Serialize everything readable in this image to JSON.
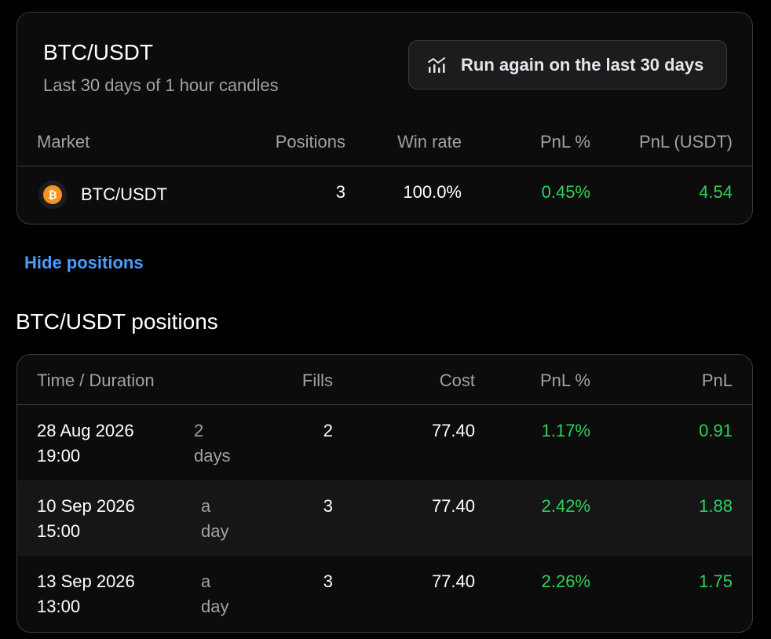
{
  "summary": {
    "title": "BTC/USDT",
    "subtitle": "Last 30 days of 1 hour candles",
    "run_button_label": "Run again on the last 30 days",
    "run_button_icon": "chart-icon",
    "columns": {
      "market": "Market",
      "positions": "Positions",
      "win_rate": "Win rate",
      "pnl_pct": "PnL %",
      "pnl_usdt": "PnL (USDT)"
    },
    "row": {
      "coin_icon": "bitcoin-icon",
      "market": "BTC/USDT",
      "positions": "3",
      "win_rate": "100.0%",
      "pnl_pct": "0.45%",
      "pnl_usdt": "4.54"
    }
  },
  "hide_positions_label": "Hide positions",
  "positions_section": {
    "title": "BTC/USDT positions",
    "columns": {
      "time": "Time / Duration",
      "fills": "Fills",
      "cost": "Cost",
      "pnl_pct": "PnL %",
      "pnl": "PnL"
    },
    "rows": [
      {
        "date": "28 Aug 2026",
        "time": "19:00",
        "duration_1": "2",
        "duration_2": "days",
        "fills": "2",
        "cost": "77.40",
        "pnl_pct": "1.17%",
        "pnl": "0.91"
      },
      {
        "date": "10 Sep 2026",
        "time": "15:00",
        "duration_1": "a",
        "duration_2": "day",
        "fills": "3",
        "cost": "77.40",
        "pnl_pct": "2.42%",
        "pnl": "1.88"
      },
      {
        "date": "13 Sep 2026",
        "time": "13:00",
        "duration_1": "a",
        "duration_2": "day",
        "fills": "3",
        "cost": "77.40",
        "pnl_pct": "2.26%",
        "pnl": "1.75"
      }
    ]
  },
  "colors": {
    "positive": "#30d158",
    "link": "#4a9dff",
    "bitcoin": "#f7931a",
    "background": "#000000",
    "card": "#0c0c0d"
  }
}
